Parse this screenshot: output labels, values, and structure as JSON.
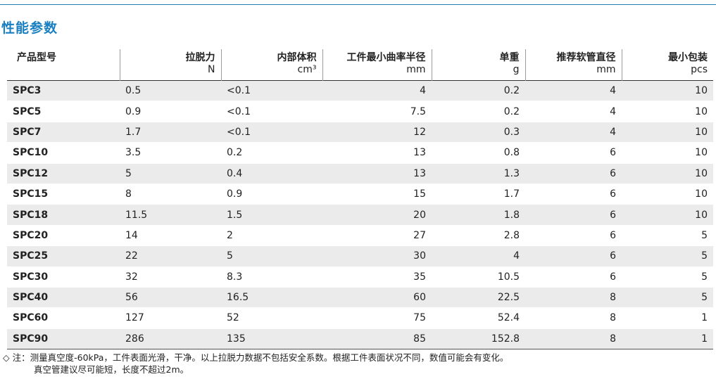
{
  "title": "性能参数",
  "colors": {
    "title": "#1a7fc0",
    "rule": "#1f7fb0",
    "stripe": "#ebebeb"
  },
  "headers": [
    {
      "label": "产品型号",
      "unit": ""
    },
    {
      "label": "拉脱力",
      "unit": "N"
    },
    {
      "label": "内部体积",
      "unit": "cm³"
    },
    {
      "label": "工件最小曲率半径",
      "unit": "mm"
    },
    {
      "label": "单重",
      "unit": "g"
    },
    {
      "label": "推荐软管直径",
      "unit": "mm"
    },
    {
      "label": "最小包装",
      "unit": "pcs"
    }
  ],
  "rows": [
    [
      "SPC3",
      "0.5",
      "<0.1",
      "4",
      "0.2",
      "4",
      "10"
    ],
    [
      "SPC5",
      "0.9",
      "<0.1",
      "7.5",
      "0.2",
      "4",
      "10"
    ],
    [
      "SPC7",
      "1.7",
      "<0.1",
      "12",
      "0.3",
      "4",
      "10"
    ],
    [
      "SPC10",
      "3.5",
      "0.2",
      "13",
      "0.8",
      "6",
      "10"
    ],
    [
      "SPC12",
      "5",
      "0.4",
      "13",
      "1.3",
      "6",
      "10"
    ],
    [
      "SPC15",
      "8",
      "0.9",
      "15",
      "1.7",
      "6",
      "10"
    ],
    [
      "SPC18",
      "11.5",
      "1.5",
      "20",
      "1.8",
      "6",
      "10"
    ],
    [
      "SPC20",
      "14",
      "2",
      "27",
      "2.8",
      "6",
      "5"
    ],
    [
      "SPC25",
      "22",
      "5",
      "30",
      "4",
      "6",
      "5"
    ],
    [
      "SPC30",
      "32",
      "8.3",
      "35",
      "10.5",
      "6",
      "5"
    ],
    [
      "SPC40",
      "56",
      "16.5",
      "60",
      "22.5",
      "8",
      "5"
    ],
    [
      "SPC60",
      "127",
      "52",
      "75",
      "52.4",
      "8",
      "1"
    ],
    [
      "SPC90",
      "286",
      "135",
      "85",
      "152.8",
      "8",
      "1"
    ]
  ],
  "note": {
    "symbol": "◇",
    "line1": "注：测量真空度-60kPa，工件表面光滑，干净。以上拉脱力数据不包括安全系数。根据工件表面状况不同，数值可能会有变化。",
    "line2": "真空管建议尽可能短，长度不超过2m。"
  }
}
